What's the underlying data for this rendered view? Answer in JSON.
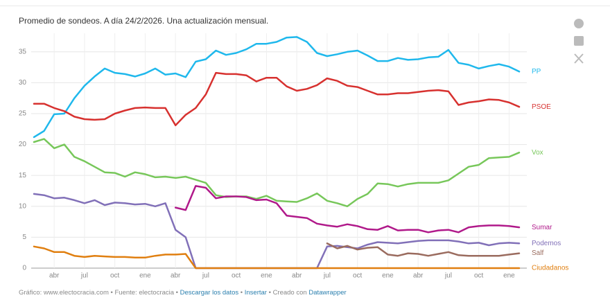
{
  "chart_data": {
    "type": "line",
    "title": "Promedio de sondeos. A día 24/2/2026. Una actualización mensual.",
    "categories": [
      null,
      null,
      "abr",
      null,
      null,
      "jul",
      null,
      null,
      "oct",
      null,
      null,
      "ene",
      null,
      null,
      "abr",
      null,
      null,
      "jul",
      null,
      null,
      "oct",
      null,
      null,
      "ene",
      null,
      null,
      "abr",
      null,
      null,
      "jul",
      null,
      null,
      "oct",
      null,
      null,
      "ene",
      null,
      null,
      "abr",
      null,
      null,
      "jul",
      null,
      null,
      "oct",
      null,
      null,
      "ene",
      null
    ],
    "ylim": [
      0,
      38
    ],
    "yticks": [
      0,
      5,
      10,
      15,
      20,
      25,
      30,
      35
    ],
    "grid": true,
    "series": [
      {
        "name": "PP",
        "color": "#1fb8ec",
        "values": [
          21.2,
          22.2,
          24.9,
          25.0,
          27.5,
          29.5,
          31.0,
          32.3,
          31.6,
          31.4,
          31.0,
          31.5,
          32.3,
          31.3,
          31.5,
          30.9,
          33.4,
          33.8,
          35.2,
          34.5,
          34.8,
          35.4,
          36.3,
          36.3,
          36.6,
          37.3,
          37.4,
          36.6,
          34.8,
          34.3,
          34.6,
          35.0,
          35.2,
          34.4,
          33.5,
          33.5,
          34.0,
          33.7,
          33.8,
          34.1,
          34.2,
          35.3,
          33.2,
          32.9,
          32.3,
          32.7,
          33.0,
          32.6,
          31.8
        ]
      },
      {
        "name": "PSOE",
        "color": "#d7312f",
        "values": [
          26.6,
          26.6,
          25.9,
          25.4,
          24.5,
          24.1,
          24.0,
          24.1,
          25.0,
          25.5,
          25.9,
          26.0,
          25.9,
          25.9,
          23.1,
          24.8,
          25.9,
          28.1,
          31.6,
          31.4,
          31.4,
          31.2,
          30.2,
          30.8,
          30.8,
          29.4,
          28.7,
          29.0,
          29.6,
          30.7,
          30.3,
          29.5,
          29.3,
          28.7,
          28.1,
          28.1,
          28.3,
          28.3,
          28.5,
          28.7,
          28.8,
          28.6,
          26.4,
          26.8,
          27.0,
          27.3,
          27.2,
          26.8,
          26.1
        ]
      },
      {
        "name": "Vox",
        "color": "#77c75a",
        "values": [
          20.4,
          20.9,
          19.4,
          20.0,
          18.0,
          17.3,
          16.4,
          15.5,
          15.4,
          14.8,
          15.5,
          15.2,
          14.7,
          14.8,
          14.6,
          14.8,
          14.3,
          13.8,
          11.8,
          11.5,
          11.6,
          11.6,
          11.2,
          11.7,
          10.9,
          10.8,
          10.7,
          11.3,
          12.1,
          10.9,
          10.5,
          10.0,
          11.2,
          12.0,
          13.7,
          13.6,
          13.2,
          13.6,
          13.8,
          13.8,
          13.8,
          14.2,
          15.3,
          16.4,
          16.7,
          17.8,
          17.9,
          18.0,
          18.7
        ]
      },
      {
        "name": "Sumar",
        "color": "#b0198a",
        "values": [
          null,
          null,
          null,
          null,
          null,
          null,
          null,
          null,
          null,
          null,
          null,
          null,
          null,
          null,
          9.8,
          9.4,
          13.3,
          13.0,
          11.3,
          11.6,
          11.6,
          11.5,
          11.0,
          11.1,
          10.5,
          8.5,
          8.3,
          8.1,
          7.2,
          6.9,
          6.7,
          7.1,
          6.8,
          6.3,
          6.2,
          6.8,
          6.1,
          6.2,
          6.2,
          5.8,
          6.1,
          6.2,
          5.8,
          6.6,
          6.8,
          6.9,
          6.9,
          6.8,
          6.6
        ]
      },
      {
        "name": "Podemos",
        "color": "#8170b8",
        "values": [
          12.0,
          11.8,
          11.3,
          11.4,
          11.0,
          10.5,
          11.0,
          10.2,
          10.6,
          10.5,
          10.3,
          10.4,
          10.0,
          10.5,
          6.2,
          5.0,
          0,
          0,
          0,
          0,
          0,
          0,
          0,
          0,
          0,
          0,
          0,
          0,
          0,
          3.5,
          3.6,
          3.4,
          3.2,
          3.8,
          4.2,
          4.1,
          4.0,
          4.2,
          4.4,
          4.5,
          4.5,
          4.5,
          4.3,
          4.0,
          4.1,
          3.7,
          4.0,
          4.1,
          4.0
        ]
      },
      {
        "name": "Salf",
        "color": "#9a6b5e",
        "values": [
          null,
          null,
          null,
          null,
          null,
          null,
          null,
          null,
          null,
          null,
          null,
          null,
          null,
          null,
          null,
          null,
          null,
          null,
          null,
          null,
          null,
          null,
          null,
          null,
          null,
          null,
          null,
          null,
          null,
          4.0,
          3.2,
          3.6,
          3.0,
          3.3,
          3.4,
          2.2,
          2.0,
          2.4,
          2.3,
          2.0,
          2.3,
          2.6,
          2.1,
          2.0,
          2.0,
          2.0,
          2.0,
          2.2,
          2.4
        ]
      },
      {
        "name": "Ciudadanos",
        "color": "#e07f10",
        "values": [
          3.5,
          3.2,
          2.6,
          2.6,
          2.0,
          1.8,
          2.0,
          1.9,
          1.8,
          1.8,
          1.7,
          1.7,
          2.0,
          2.2,
          2.2,
          2.3,
          0,
          0,
          0,
          0,
          0,
          0,
          0,
          0,
          0,
          0,
          0,
          0,
          0,
          0,
          0,
          0,
          0,
          0,
          0,
          0,
          0,
          0,
          0,
          0,
          0,
          0,
          0,
          0,
          0,
          0,
          0,
          0,
          0
        ]
      }
    ]
  },
  "footer": [
    "Gráfico: www.electocracia.com",
    "•",
    "Fuente: electocracia",
    "•",
    "Descargar los datos",
    "•",
    "Insertar",
    "•",
    "Creado con",
    "Datawrapper"
  ]
}
